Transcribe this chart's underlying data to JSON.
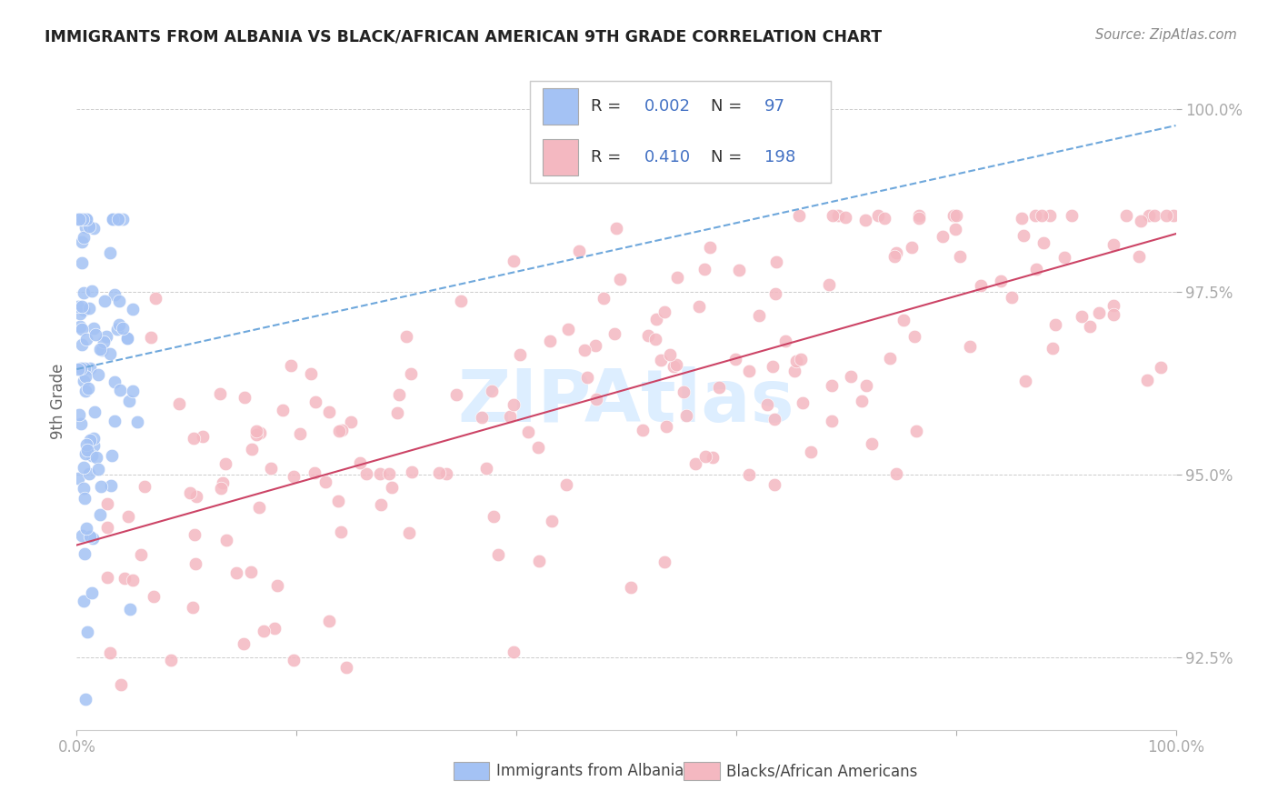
{
  "title": "IMMIGRANTS FROM ALBANIA VS BLACK/AFRICAN AMERICAN 9TH GRADE CORRELATION CHART",
  "source": "Source: ZipAtlas.com",
  "ylabel": "9th Grade",
  "xlim": [
    0.0,
    1.0
  ],
  "ylim": [
    0.915,
    1.005
  ],
  "yticks": [
    0.925,
    0.95,
    0.975,
    1.0
  ],
  "ytick_labels": [
    "92.5%",
    "95.0%",
    "97.5%",
    "100.0%"
  ],
  "xticks": [
    0.0,
    0.2,
    0.4,
    0.6,
    0.8,
    1.0
  ],
  "xtick_labels": [
    "0.0%",
    "",
    "",
    "",
    "",
    "100.0%"
  ],
  "color_blue": "#a4c2f4",
  "color_pink": "#f4b8c1",
  "color_line_blue": "#6fa8dc",
  "color_line_pink": "#cc4466",
  "color_axis_text": "#4472c4",
  "title_color": "#222222",
  "source_color": "#888888",
  "background": "#ffffff",
  "grid_color": "#cccccc",
  "watermark_text": "ZIPAtlas",
  "watermark_color": "#ddeeff",
  "legend1_r": "0.002",
  "legend1_n": "97",
  "legend2_r": "0.410",
  "legend2_n": "198",
  "label_albania": "Immigrants from Albania",
  "label_black": "Blacks/African Americans"
}
